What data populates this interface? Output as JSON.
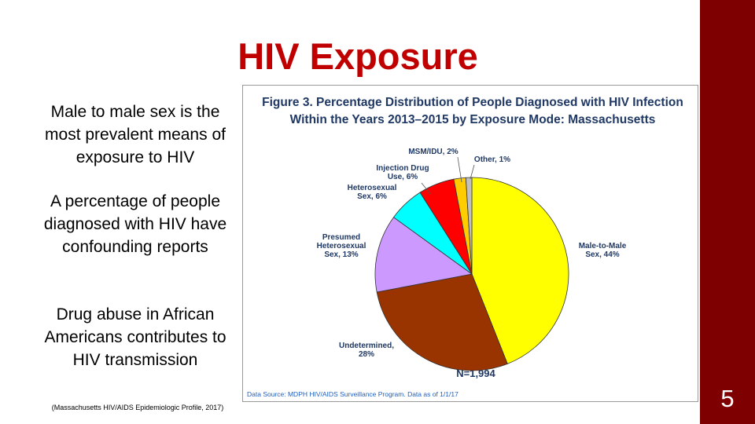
{
  "title": "HIV Exposure",
  "bullets": [
    "Male to male sex is the most prevalent means of exposure to HIV",
    "A percentage of people diagnosed with HIV have confounding reports",
    "Drug abuse in African Americans contributes to HIV transmission"
  ],
  "citation": "(Massachusetts HIV/AIDS Epidemiologic Profile, 2017)",
  "page_number": "5",
  "chart_data": {
    "type": "pie",
    "title": "Figure 3. Percentage Distribution of People Diagnosed with HIV Infection Within the Years 2013–2015 by Exposure Mode: Massachusetts",
    "categories": [
      "Male-to-Male Sex, 44%",
      "Undetermined, 28%",
      "Presumed Heterosexual Sex, 13%",
      "Heterosexual Sex, 6%",
      "Injection Drug Use, 6%",
      "MSM/IDU, 2%",
      "Other, 1%"
    ],
    "values": [
      44,
      28,
      13,
      6,
      6,
      2,
      1
    ],
    "colors": [
      "#ffff00",
      "#993300",
      "#cc99ff",
      "#00ffff",
      "#ff0000",
      "#ffcc00",
      "#c0c0c0"
    ],
    "annotation": "N=1,994",
    "source": "Data Source: MDPH HIV/AIDS Surveillance Program. Data as of 1/1/17"
  }
}
